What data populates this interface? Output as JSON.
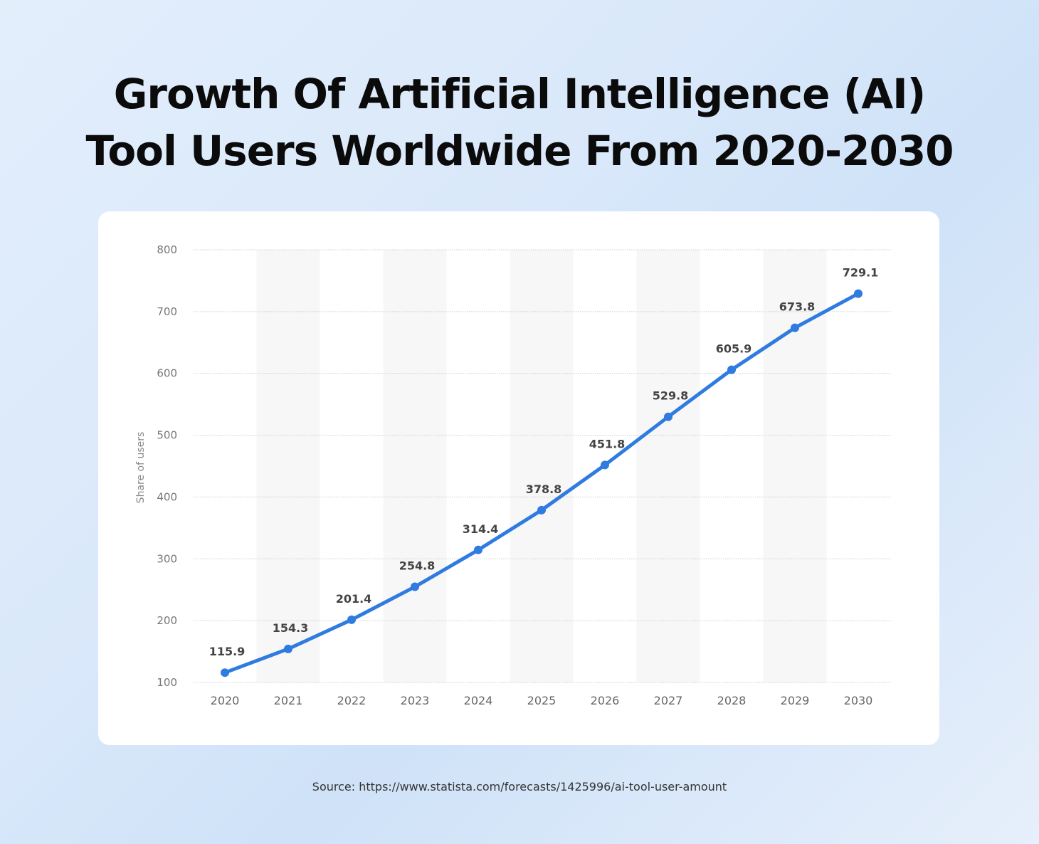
{
  "title_line1": "Growth Of Artificial Intelligence (AI)",
  "title_line2": "Tool Users Worldwide From 2020-2030",
  "source": "Source: https://www.statista.com/forecasts/1425996/ai-tool-user-amount",
  "chart_data": {
    "type": "line",
    "title": "Growth Of Artificial Intelligence (AI) Tool Users Worldwide From 2020-2030",
    "xlabel": "",
    "ylabel": "Share of users",
    "categories": [
      "2020",
      "2021",
      "2022",
      "2023",
      "2024",
      "2025",
      "2026",
      "2027",
      "2028",
      "2029",
      "2030"
    ],
    "values": [
      115.9,
      154.3,
      201.4,
      254.8,
      314.4,
      378.8,
      451.8,
      529.8,
      605.9,
      673.8,
      729.1
    ],
    "data_labels": [
      "115.9",
      "154.3",
      "201.4",
      "254.8",
      "314.4",
      "378.8",
      "451.8",
      "529.8",
      "605.9",
      "673.8",
      "729.1"
    ],
    "ylim": [
      100,
      800
    ],
    "yticks": [
      "100",
      "200",
      "300",
      "400",
      "500",
      "600",
      "700",
      "800"
    ],
    "grid": true,
    "line_color": "#2f7be0"
  }
}
